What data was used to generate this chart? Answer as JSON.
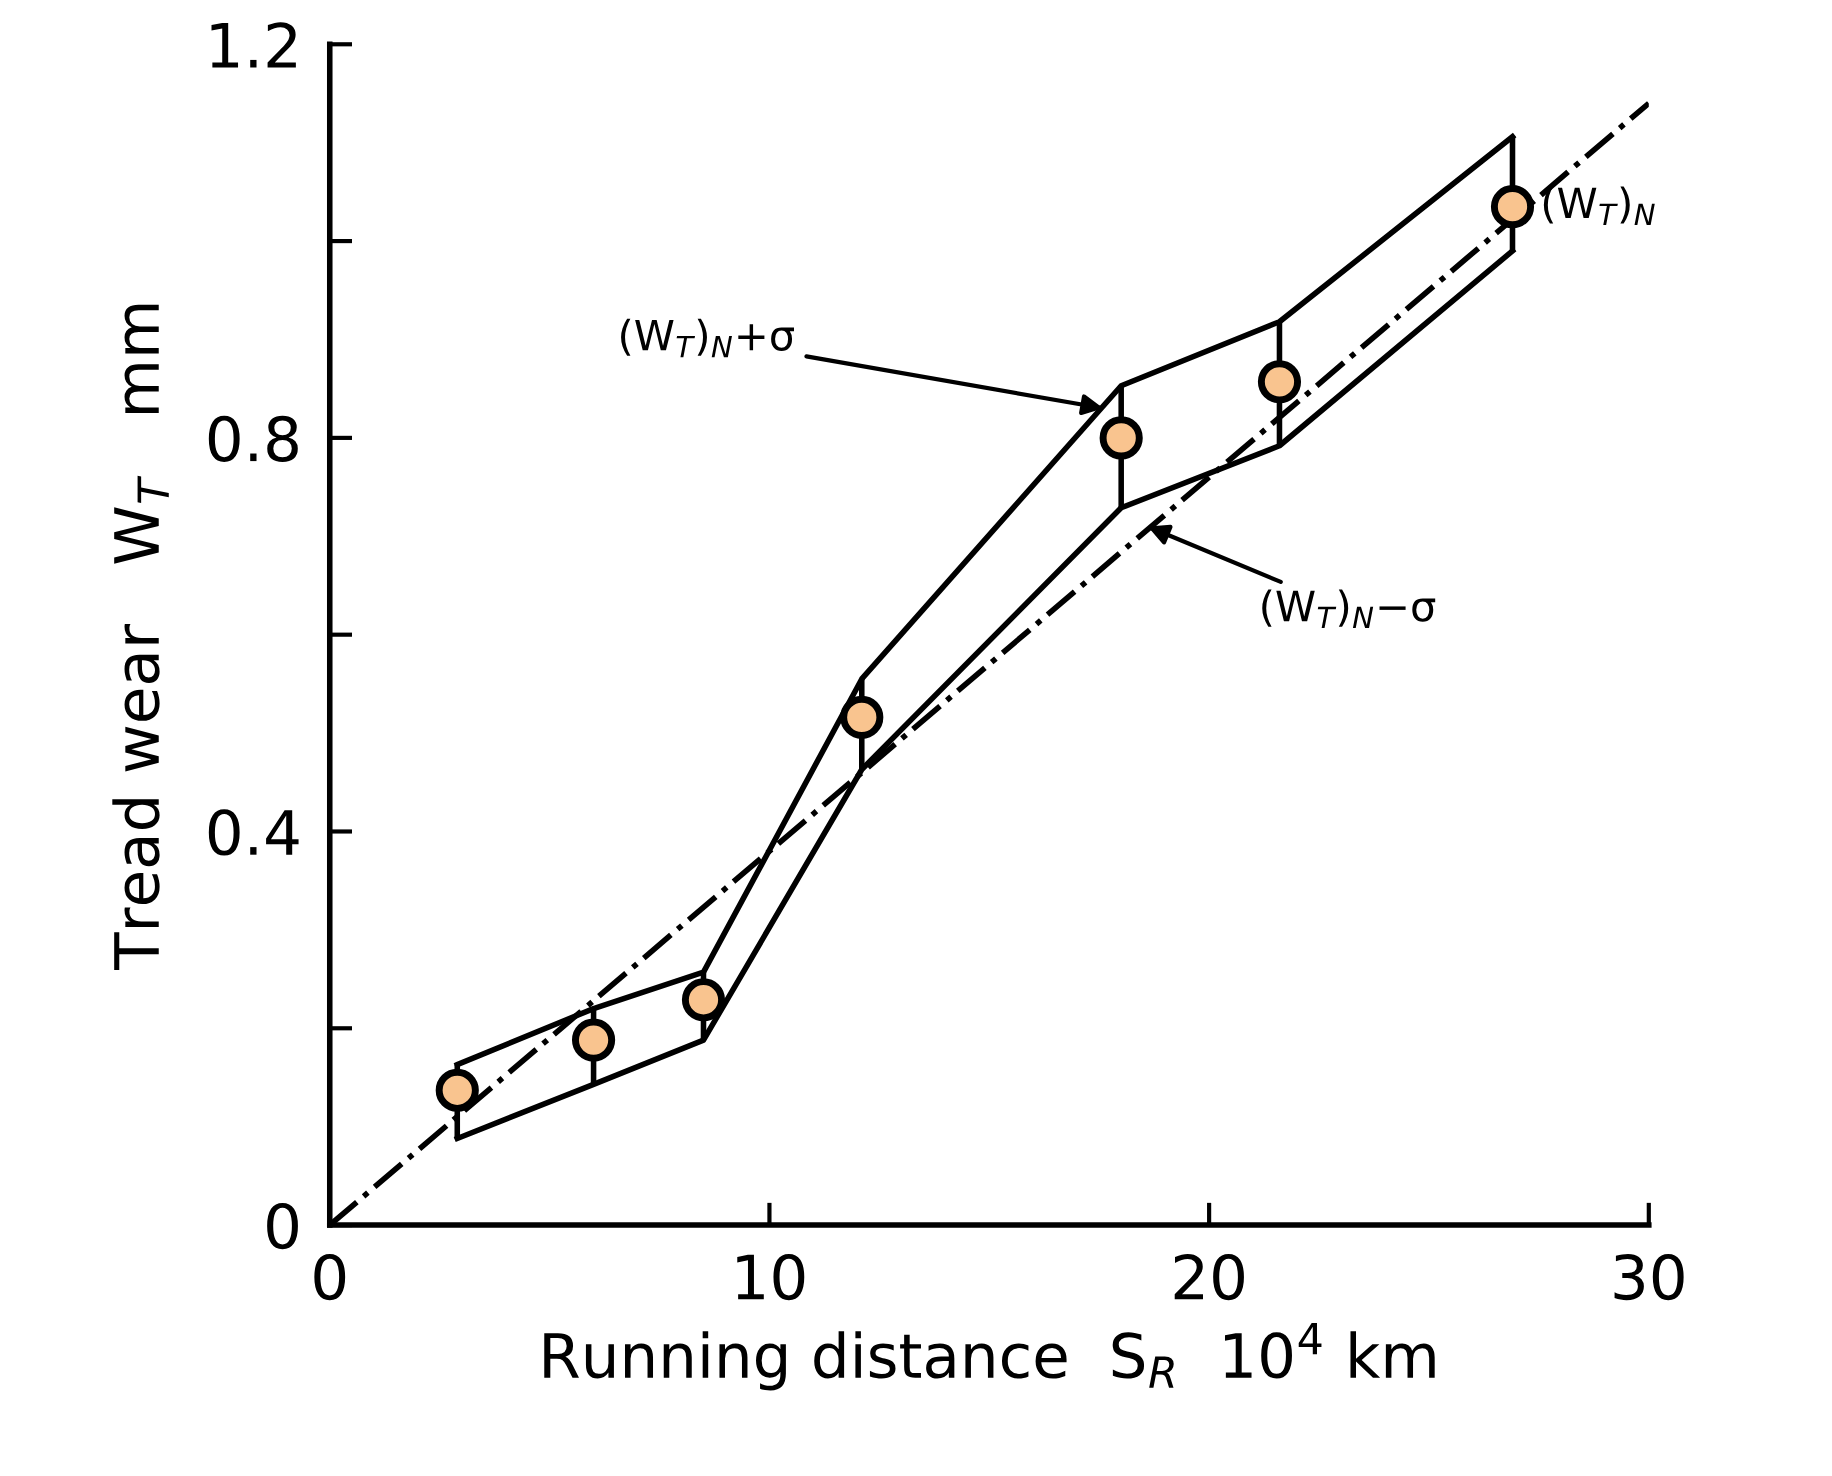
{
  "chart_data": {
    "type": "scatter",
    "xlabel": "Running distance  S$_{R}$  10$^{4}$ km",
    "ylabel": "Tread wear   W$_{T}$   mm",
    "xlim": [
      0,
      30
    ],
    "ylim": [
      0,
      1.2
    ],
    "xticks": [
      0,
      10,
      20,
      30
    ],
    "yticks": [
      0,
      {
        "value": 0.2,
        "label": null
      },
      0.4,
      {
        "value": 0.6,
        "label": null
      },
      0.8,
      {
        "value": 1.0,
        "label": null
      },
      1.2
    ],
    "grid": false,
    "legend": false,
    "series": [
      {
        "type": "line",
        "color": "#000000",
        "line_style": "solid",
        "marker": "none",
        "x": [
          2.9,
          6.0,
          8.5,
          12.1,
          18.0,
          21.6,
          26.9
        ],
        "values": [
          0.163,
          0.22,
          0.257,
          0.555,
          0.853,
          0.918,
          1.106
        ]
      },
      {
        "type": "line",
        "color": "#000000",
        "line_style": "solid",
        "marker": "none",
        "x": [
          2.9,
          6.0,
          8.5,
          12.1,
          18.0,
          21.6,
          26.9
        ],
        "values": [
          0.088,
          0.143,
          0.188,
          0.463,
          0.729,
          0.792,
          0.99
        ]
      },
      {
        "color": "#f9c48f",
        "marker": "circle",
        "x": [
          2.9,
          6.0,
          8.5,
          12.1,
          18.0,
          21.6,
          26.9
        ],
        "values": [
          0.137,
          0.188,
          0.229,
          0.516,
          0.8,
          0.857,
          1.035
        ],
        "errors": [
          [
            0.088,
            0.163
          ],
          [
            0.143,
            0.22
          ],
          [
            0.188,
            0.257
          ],
          [
            0.463,
            0.555
          ],
          [
            0.729,
            0.853
          ],
          [
            0.792,
            0.918
          ],
          [
            0.99,
            1.106
          ]
        ]
      },
      {
        "type": "line",
        "color": "#000000",
        "line_style": "dashdot",
        "marker": "none",
        "x": [
          0,
          30
        ],
        "values": [
          0,
          1.14
        ]
      }
    ],
    "annotations": [
      {
        "text": "(W$_{T}$)$_{N}$+σ",
        "x": 17.6,
        "y": 0.83
      },
      {
        "text": "(W$_{T}$)$_{N}$−σ",
        "x": 18.6,
        "y": 0.71
      },
      {
        "text": "(W$_{T}$)$_{N}$",
        "x": 26.9,
        "y": 1.035
      }
    ]
  }
}
